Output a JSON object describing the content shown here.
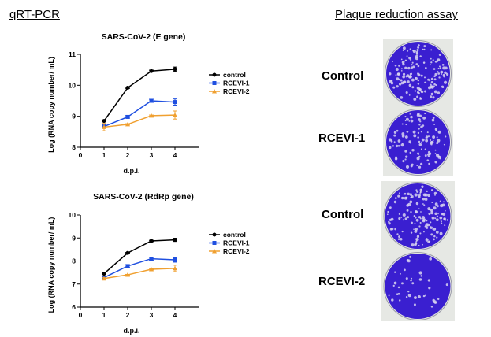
{
  "headers": {
    "left": "qRT-PCR",
    "right": "Plaque reduction assay"
  },
  "plate_labels": [
    "Control",
    "RCEVI-1",
    "Control",
    "RCEVI-2"
  ],
  "plate_colors": {
    "stain": "#3a1fd0",
    "plaque": "#d8d4f0"
  },
  "chart_data": [
    {
      "type": "line",
      "title": "SARS-CoV-2 (E gene)",
      "xlabel": "d.p.i.",
      "ylabel": "Log (RNA copy number/ mL)",
      "x": [
        1,
        2,
        3,
        4
      ],
      "xticks": [
        0,
        1,
        2,
        3,
        4
      ],
      "xlim": [
        0,
        5
      ],
      "yticks": [
        8,
        9,
        10,
        11
      ],
      "ylim": [
        8,
        11
      ],
      "legend": "right",
      "series": [
        {
          "name": "control",
          "color": "#000000",
          "marker": "circle",
          "values": [
            8.85,
            9.92,
            10.46,
            10.52
          ],
          "errors": [
            0.02,
            0.02,
            0.03,
            0.07
          ]
        },
        {
          "name": "RCEVI-1",
          "color": "#1f4fe0",
          "marker": "square",
          "values": [
            8.67,
            8.98,
            9.5,
            9.46
          ],
          "errors": [
            0.06,
            0.04,
            0.05,
            0.1
          ]
        },
        {
          "name": "RCEVI-2",
          "color": "#f0a030",
          "marker": "triangle",
          "values": [
            8.65,
            8.74,
            9.02,
            9.04
          ],
          "errors": [
            0.12,
            0.02,
            0.02,
            0.13
          ]
        }
      ]
    },
    {
      "type": "line",
      "title": "SARS-CoV-2 (RdRp gene)",
      "xlabel": "d.p.i.",
      "ylabel": "Log (RNA copy number/ mL)",
      "x": [
        1,
        2,
        3,
        4
      ],
      "xticks": [
        0,
        1,
        2,
        3,
        4
      ],
      "xlim": [
        0,
        5
      ],
      "yticks": [
        6,
        7,
        8,
        9,
        10
      ],
      "ylim": [
        6,
        10
      ],
      "legend": "right",
      "series": [
        {
          "name": "control",
          "color": "#000000",
          "marker": "circle",
          "values": [
            7.45,
            8.35,
            8.87,
            8.92
          ],
          "errors": [
            0.02,
            0.02,
            0.03,
            0.07
          ]
        },
        {
          "name": "RCEVI-1",
          "color": "#1f4fe0",
          "marker": "square",
          "values": [
            7.28,
            7.78,
            8.1,
            8.05
          ],
          "errors": [
            0.04,
            0.06,
            0.06,
            0.1
          ]
        },
        {
          "name": "RCEVI-2",
          "color": "#f0a030",
          "marker": "triangle",
          "values": [
            7.24,
            7.4,
            7.64,
            7.68
          ],
          "errors": [
            0.04,
            0.02,
            0.03,
            0.14
          ]
        }
      ]
    }
  ]
}
